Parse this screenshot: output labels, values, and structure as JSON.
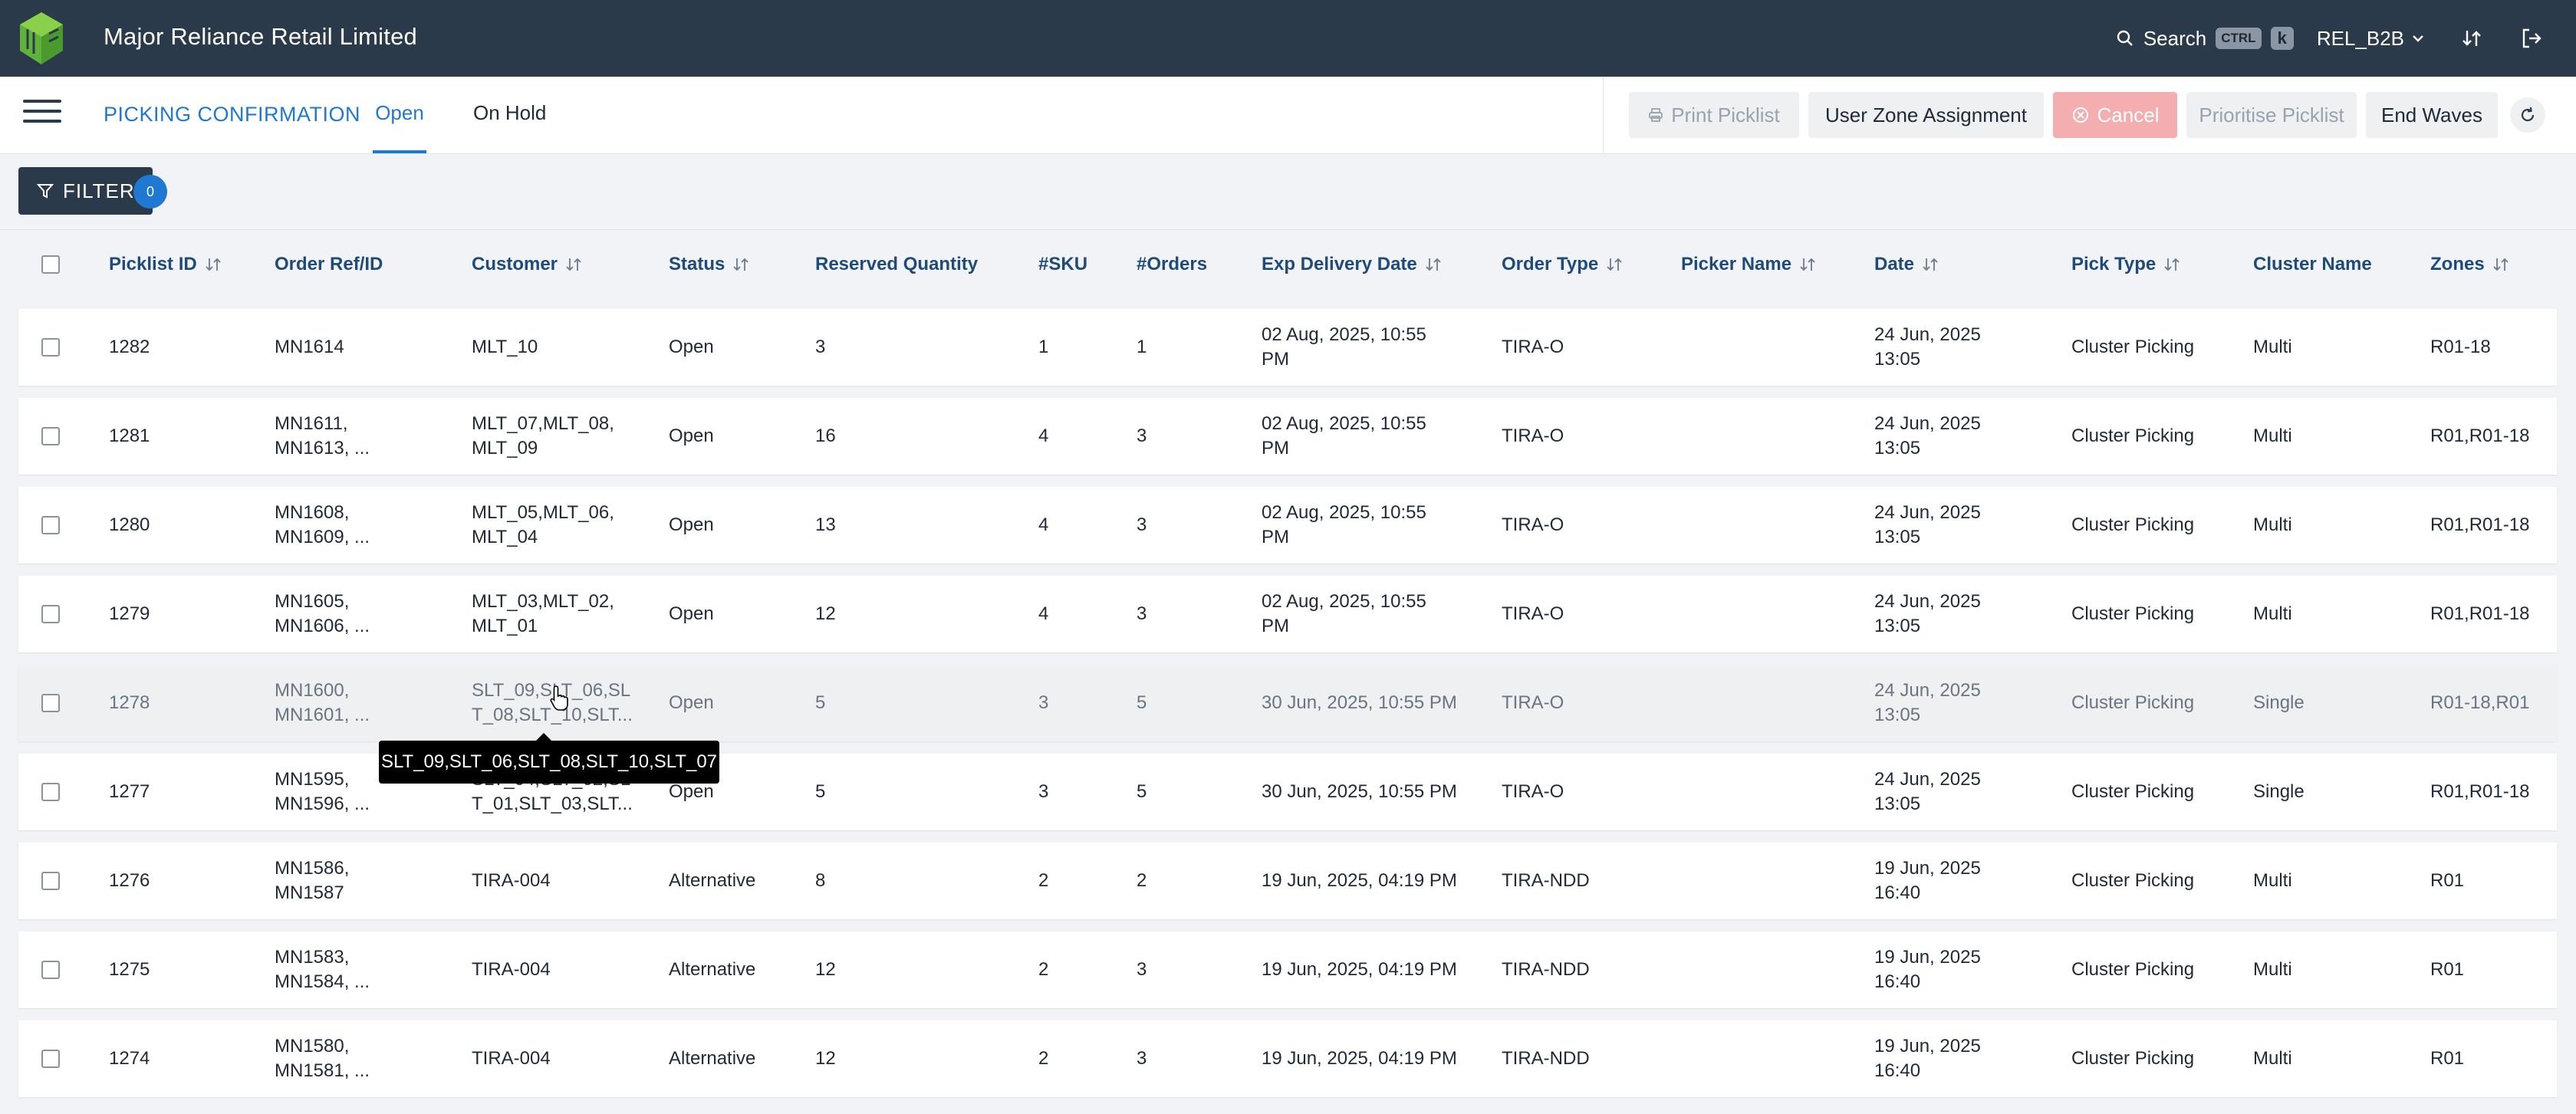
{
  "app": {
    "company": "Major Reliance Retail Limited",
    "search_label": "Search",
    "kbd_ctrl": "CTRL",
    "kbd_k": "k",
    "org": "REL_B2B"
  },
  "subheader": {
    "title": "PICKING CONFIRMATION",
    "tabs": [
      "Open",
      "On Hold"
    ],
    "actions": {
      "print": "Print Picklist",
      "user_zone": "User Zone Assignment",
      "cancel": "Cancel",
      "prioritise": "Prioritise Picklist",
      "end_waves": "End Waves"
    }
  },
  "filter": {
    "label": "FILTER",
    "count": "0"
  },
  "table": {
    "headers": [
      "Picklist ID",
      "Order Ref/ID",
      "Customer",
      "Status",
      "Reserved Quantity",
      "#SKU",
      "#Orders",
      "Exp Delivery Date",
      "Order Type",
      "Picker Name",
      "Date",
      "Pick Type",
      "Cluster Name",
      "Zones"
    ],
    "rows": [
      {
        "id": "1282",
        "order": "MN1614",
        "customer": "MLT_10",
        "status": "Open",
        "qty": "3",
        "sku": "1",
        "orders": "1",
        "exp": "02 Aug, 2025, 10:55\nPM",
        "type": "TIRA-O",
        "picker": "",
        "date": "24 Jun, 2025\n13:05",
        "pick": "Cluster Picking",
        "cluster": "Multi",
        "zones": "R01-18"
      },
      {
        "id": "1281",
        "order": "MN1611,\nMN1613, ...",
        "customer": "MLT_07,MLT_08,\nMLT_09",
        "status": "Open",
        "qty": "16",
        "sku": "4",
        "orders": "3",
        "exp": "02 Aug, 2025, 10:55\nPM",
        "type": "TIRA-O",
        "picker": "",
        "date": "24 Jun, 2025\n13:05",
        "pick": "Cluster Picking",
        "cluster": "Multi",
        "zones": "R01,R01-18"
      },
      {
        "id": "1280",
        "order": "MN1608,\nMN1609, ...",
        "customer": "MLT_05,MLT_06,\nMLT_04",
        "status": "Open",
        "qty": "13",
        "sku": "4",
        "orders": "3",
        "exp": "02 Aug, 2025, 10:55\nPM",
        "type": "TIRA-O",
        "picker": "",
        "date": "24 Jun, 2025\n13:05",
        "pick": "Cluster Picking",
        "cluster": "Multi",
        "zones": "R01,R01-18"
      },
      {
        "id": "1279",
        "order": "MN1605,\nMN1606, ...",
        "customer": "MLT_03,MLT_02,\nMLT_01",
        "status": "Open",
        "qty": "12",
        "sku": "4",
        "orders": "3",
        "exp": "02 Aug, 2025, 10:55\nPM",
        "type": "TIRA-O",
        "picker": "",
        "date": "24 Jun, 2025\n13:05",
        "pick": "Cluster Picking",
        "cluster": "Multi",
        "zones": "R01,R01-18"
      },
      {
        "id": "1278",
        "order": "MN1600,\nMN1601, ...",
        "customer": "SLT_09,SLT_06,SL\nT_08,SLT_10,SLT...",
        "status": "Open",
        "qty": "5",
        "sku": "3",
        "orders": "5",
        "exp": "30 Jun, 2025, 10:55 PM",
        "type": "TIRA-O",
        "picker": "",
        "date": "24 Jun, 2025\n13:05",
        "pick": "Cluster Picking",
        "cluster": "Single",
        "zones": "R01-18,R01"
      },
      {
        "id": "1277",
        "order": "MN1595,\nMN1596, ...",
        "customer": "SLT_04,SLT_02,SL\nT_01,SLT_03,SLT...",
        "status": "Open",
        "qty": "5",
        "sku": "3",
        "orders": "5",
        "exp": "30 Jun, 2025, 10:55 PM",
        "type": "TIRA-O",
        "picker": "",
        "date": "24 Jun, 2025\n13:05",
        "pick": "Cluster Picking",
        "cluster": "Single",
        "zones": "R01,R01-18"
      },
      {
        "id": "1276",
        "order": "MN1586,\nMN1587",
        "customer": "TIRA-004",
        "status": "Alternative",
        "qty": "8",
        "sku": "2",
        "orders": "2",
        "exp": "19 Jun, 2025, 04:19 PM",
        "type": "TIRA-NDD",
        "picker": "",
        "date": "19 Jun, 2025\n16:40",
        "pick": "Cluster Picking",
        "cluster": "Multi",
        "zones": "R01"
      },
      {
        "id": "1275",
        "order": "MN1583,\nMN1584, ...",
        "customer": "TIRA-004",
        "status": "Alternative",
        "qty": "12",
        "sku": "2",
        "orders": "3",
        "exp": "19 Jun, 2025, 04:19 PM",
        "type": "TIRA-NDD",
        "picker": "",
        "date": "19 Jun, 2025\n16:40",
        "pick": "Cluster Picking",
        "cluster": "Multi",
        "zones": "R01"
      },
      {
        "id": "1274",
        "order": "MN1580,\nMN1581, ...",
        "customer": "TIRA-004",
        "status": "Alternative",
        "qty": "12",
        "sku": "2",
        "orders": "3",
        "exp": "19 Jun, 2025, 04:19 PM",
        "type": "TIRA-NDD",
        "picker": "",
        "date": "19 Jun, 2025\n16:40",
        "pick": "Cluster Picking",
        "cluster": "Multi",
        "zones": "R01"
      }
    ]
  },
  "tooltip": "SLT_09,SLT_06,SLT_08,SLT_10,SLT_07",
  "colors": {
    "topbar": "#2b3a4a",
    "accent": "#1f78d1",
    "cancel": "#f4aeb0",
    "logo": "#6fbf3a"
  }
}
